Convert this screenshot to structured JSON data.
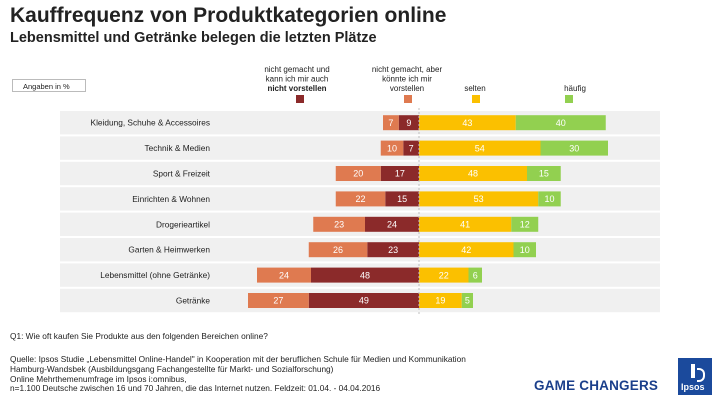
{
  "header": {
    "title": "Kauffrequenz von Produktkategorien online",
    "subtitle": "Lebensmittel und Getränke belegen die letzten Plätze",
    "unit_label": "Angaben in %"
  },
  "chart_data": {
    "type": "bar",
    "stacked": "diverging",
    "orientation": "horizontal",
    "categories": [
      "Kleidung, Schuhe & Accessoires",
      "Technik & Medien",
      "Sport & Freizeit",
      "Einrichten & Wohnen",
      "Drogerieartikel",
      "Garten & Heimwerken",
      "Lebensmittel (ohne Getränke)",
      "Getränke"
    ],
    "series": [
      {
        "name": "nicht gemacht und kann ich mir auch nicht vorstellen",
        "legend_lines": [
          "nicht gemacht und",
          "kann ich mir auch",
          "nicht vorstellen"
        ],
        "bold_line": 2,
        "color": "#8b2a2a",
        "side": "negative",
        "values": [
          9,
          7,
          17,
          15,
          24,
          23,
          48,
          49
        ]
      },
      {
        "name": "nicht gemacht, aber könnte ich mir vorstellen",
        "legend_lines": [
          "nicht gemacht, aber",
          "könnte ich mir",
          "vorstellen"
        ],
        "bold_line": -1,
        "color": "#df7a50",
        "side": "negative",
        "values": [
          7,
          10,
          20,
          22,
          23,
          26,
          24,
          27
        ]
      },
      {
        "name": "selten",
        "legend_lines": [
          "selten"
        ],
        "bold_line": -1,
        "color": "#fbc000",
        "side": "positive",
        "values": [
          43,
          54,
          48,
          53,
          41,
          42,
          22,
          19
        ]
      },
      {
        "name": "häufig",
        "legend_lines": [
          "häufig"
        ],
        "bold_line": -1,
        "color": "#92d050",
        "side": "positive",
        "values": [
          40,
          30,
          15,
          10,
          12,
          10,
          6,
          5
        ]
      }
    ]
  },
  "footer": {
    "question": "Q1: Wie oft kaufen Sie Produkte aus den folgenden Bereichen online?",
    "source_lines": [
      "Quelle: Ipsos Studie „Lebensmittel Online-Handel\" in Kooperation mit der beruflichen Schule für Medien und Kommunikation",
      "Hamburg-Wandsbek (Ausbildungsgang Fachangestellte für Markt- und Sozialforschung)",
      "Online Mehrthemenumfrage im Ipsos i:omnibus,",
      "n=1.100 Deutsche zwischen 16 und 70 Jahren, die das Internet nutzen. Feldzeit: 01.04. - 04.04.2016"
    ],
    "tagline": "GAME CHANGERS",
    "logo_text": "Ipsos"
  },
  "colors": {
    "title": "#222222",
    "brand_blue": "#1b3f8b",
    "row_band": "#f0f0f0",
    "zero_line": "#bfbfbf"
  }
}
